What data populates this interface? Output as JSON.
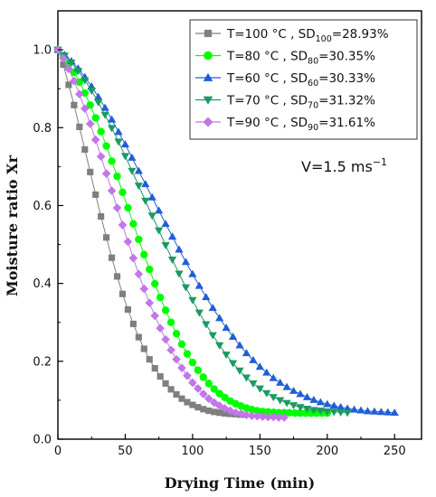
{
  "chart_data": {
    "type": "scatter",
    "xlabel": "Drying Time (min)",
    "ylabel": "Moisture ratio Xr",
    "xlim": [
      0,
      270
    ],
    "ylim": [
      0,
      1.1
    ],
    "xticks": [
      "0",
      "50",
      "100",
      "150",
      "200",
      "250"
    ],
    "yticks": [
      "0.0",
      "0.2",
      "0.4",
      "0.6",
      "0.8",
      "1.0"
    ],
    "annotation": {
      "prefix": "V=1.5 ms",
      "sup": "−1"
    },
    "legend_position": "top-right",
    "series": [
      {
        "label_prefix": "T=100 °C , SD",
        "label_sub": "100",
        "label_suffix": "=28.93%",
        "color": "#7f7f7f",
        "marker": "square",
        "x": [
          0,
          4,
          8,
          12,
          16,
          20,
          24,
          28,
          32,
          36,
          40,
          44,
          48,
          52,
          56,
          60,
          64,
          68,
          72,
          76,
          80,
          84,
          88,
          92,
          96,
          100,
          104,
          108,
          112,
          116,
          120,
          124,
          128,
          132,
          136
        ],
        "y": [
          1.0,
          0.962,
          0.91,
          0.858,
          0.802,
          0.744,
          0.686,
          0.628,
          0.572,
          0.518,
          0.466,
          0.418,
          0.373,
          0.333,
          0.296,
          0.262,
          0.232,
          0.205,
          0.182,
          0.161,
          0.143,
          0.128,
          0.115,
          0.104,
          0.095,
          0.088,
          0.082,
          0.077,
          0.073,
          0.07,
          0.068,
          0.066,
          0.065,
          0.064,
          0.063
        ]
      },
      {
        "label_prefix": "T=80 °C , SD",
        "label_sub": "80",
        "label_suffix": "=30.35%",
        "color": "#00ff00",
        "marker": "circle",
        "x": [
          0,
          4,
          8,
          12,
          16,
          20,
          24,
          28,
          32,
          36,
          40,
          44,
          48,
          52,
          56,
          60,
          64,
          68,
          72,
          76,
          80,
          84,
          88,
          92,
          96,
          100,
          104,
          108,
          112,
          116,
          120,
          124,
          128,
          132,
          136,
          140,
          144,
          148,
          152,
          156,
          160,
          164,
          168,
          172,
          176,
          180,
          184,
          188,
          192,
          196,
          200
        ],
        "y": [
          1.0,
          0.985,
          0.965,
          0.942,
          0.917,
          0.889,
          0.858,
          0.825,
          0.79,
          0.753,
          0.714,
          0.675,
          0.634,
          0.594,
          0.553,
          0.513,
          0.474,
          0.436,
          0.399,
          0.364,
          0.331,
          0.3,
          0.271,
          0.244,
          0.219,
          0.197,
          0.177,
          0.159,
          0.143,
          0.129,
          0.117,
          0.107,
          0.098,
          0.091,
          0.085,
          0.08,
          0.076,
          0.073,
          0.071,
          0.07,
          0.069,
          0.068,
          0.068,
          0.068,
          0.067,
          0.067,
          0.067,
          0.067,
          0.067,
          0.067,
          0.067
        ]
      },
      {
        "label_prefix": "T=60 °C , SD",
        "label_sub": "60",
        "label_suffix": "=30.33%",
        "color": "#1f5fd6",
        "marker": "triangle-up",
        "x": [
          0,
          5,
          10,
          15,
          20,
          25,
          30,
          35,
          40,
          45,
          50,
          55,
          60,
          65,
          70,
          75,
          80,
          85,
          90,
          95,
          100,
          105,
          110,
          115,
          120,
          125,
          130,
          135,
          140,
          145,
          150,
          155,
          160,
          165,
          170,
          175,
          180,
          185,
          190,
          195,
          200,
          205,
          210,
          215,
          220,
          225,
          230,
          235,
          240,
          245,
          250
        ],
        "y": [
          1.0,
          0.987,
          0.971,
          0.952,
          0.93,
          0.906,
          0.879,
          0.851,
          0.821,
          0.789,
          0.757,
          0.723,
          0.689,
          0.655,
          0.621,
          0.587,
          0.553,
          0.52,
          0.487,
          0.455,
          0.424,
          0.394,
          0.365,
          0.337,
          0.311,
          0.286,
          0.263,
          0.241,
          0.221,
          0.203,
          0.186,
          0.171,
          0.157,
          0.145,
          0.134,
          0.124,
          0.116,
          0.108,
          0.101,
          0.095,
          0.09,
          0.086,
          0.082,
          0.079,
          0.076,
          0.074,
          0.072,
          0.071,
          0.07,
          0.069,
          0.068
        ]
      },
      {
        "label_prefix": "T=70 °C , SD",
        "label_sub": "70",
        "label_suffix": "=31.32%",
        "color": "#1b9a62",
        "marker": "triangle-down",
        "x": [
          0,
          5,
          10,
          15,
          20,
          25,
          30,
          35,
          40,
          45,
          50,
          55,
          60,
          65,
          70,
          75,
          80,
          85,
          90,
          95,
          100,
          105,
          110,
          115,
          120,
          125,
          130,
          135,
          140,
          145,
          150,
          155,
          160,
          165,
          170,
          175,
          180,
          185,
          190,
          195,
          200,
          205,
          210,
          215
        ],
        "y": [
          1.0,
          0.985,
          0.967,
          0.946,
          0.922,
          0.895,
          0.865,
          0.833,
          0.799,
          0.764,
          0.727,
          0.689,
          0.651,
          0.612,
          0.574,
          0.536,
          0.498,
          0.461,
          0.425,
          0.39,
          0.357,
          0.325,
          0.295,
          0.267,
          0.241,
          0.217,
          0.195,
          0.176,
          0.158,
          0.143,
          0.13,
          0.118,
          0.108,
          0.1,
          0.093,
          0.087,
          0.082,
          0.078,
          0.075,
          0.073,
          0.071,
          0.07,
          0.069,
          0.068
        ]
      },
      {
        "label_prefix": "T=90 °C , SD",
        "label_sub": "90",
        "label_suffix": "=31.61%",
        "color": "#c277e6",
        "marker": "diamond",
        "x": [
          0,
          4,
          8,
          12,
          16,
          20,
          24,
          28,
          32,
          36,
          40,
          44,
          48,
          52,
          56,
          60,
          64,
          68,
          72,
          76,
          80,
          84,
          88,
          92,
          96,
          100,
          104,
          108,
          112,
          116,
          120,
          124,
          128,
          132,
          136,
          140,
          144,
          148,
          152,
          156,
          160,
          164,
          168
        ],
        "y": [
          1.0,
          0.978,
          0.951,
          0.92,
          0.886,
          0.849,
          0.81,
          0.769,
          0.726,
          0.682,
          0.638,
          0.594,
          0.55,
          0.507,
          0.465,
          0.424,
          0.386,
          0.35,
          0.317,
          0.285,
          0.256,
          0.229,
          0.205,
          0.183,
          0.163,
          0.145,
          0.13,
          0.116,
          0.104,
          0.094,
          0.086,
          0.079,
          0.073,
          0.068,
          0.065,
          0.062,
          0.06,
          0.059,
          0.058,
          0.057,
          0.057,
          0.056,
          0.056
        ]
      }
    ]
  }
}
